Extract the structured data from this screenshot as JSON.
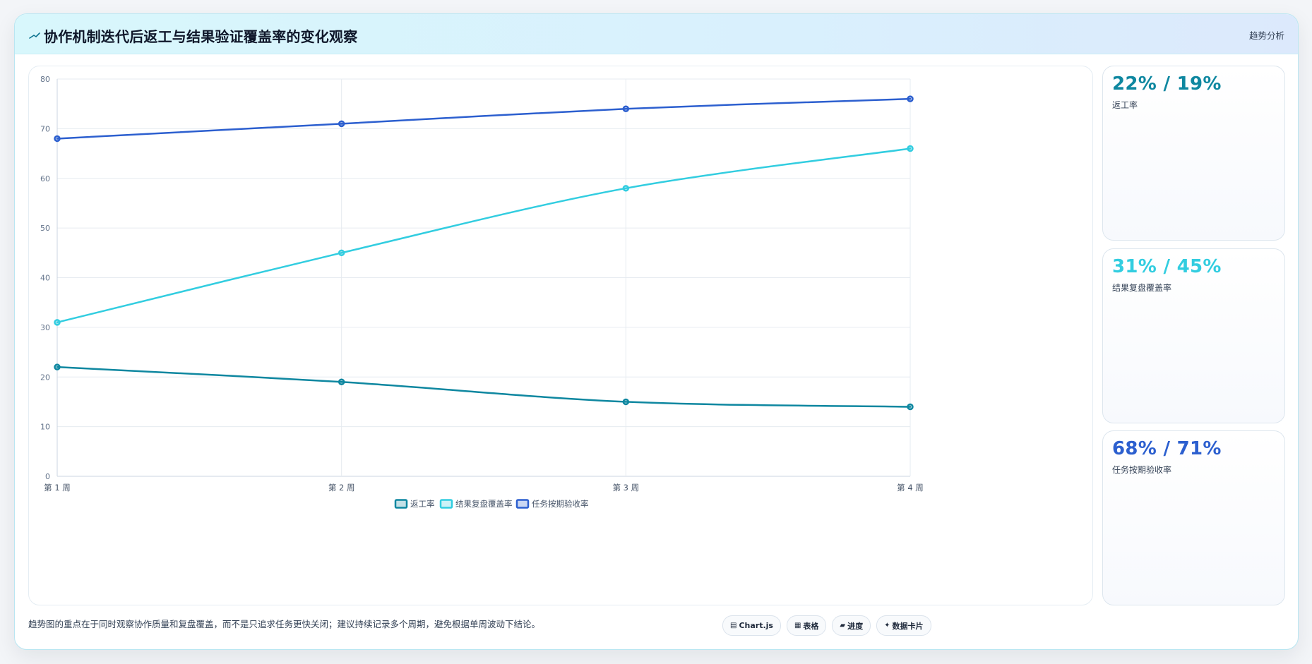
{
  "header": {
    "title": "协作机制迭代后返工与结果验证覆盖率的变化观察",
    "title_icon": "trend-line-icon",
    "tag": "趋势分析"
  },
  "chart_data": {
    "type": "line",
    "categories": [
      "第 1 周",
      "第 2 周",
      "第 3 周",
      "第 4 周"
    ],
    "series": [
      {
        "name": "返工率",
        "values": [
          22,
          19,
          15,
          14
        ],
        "color": "#0e87a0"
      },
      {
        "name": "结果复盘覆盖率",
        "values": [
          31,
          45,
          58,
          66
        ],
        "color": "#32cde0"
      },
      {
        "name": "任务按期验收率",
        "values": [
          68,
          71,
          74,
          76
        ],
        "color": "#2c5fcf"
      }
    ],
    "ylim": [
      0,
      80
    ],
    "yticks": [
      0,
      10,
      20,
      30,
      40,
      50,
      60,
      70,
      80
    ],
    "grid": true,
    "legend": "bottom-center",
    "title": "",
    "xlabel": "",
    "ylabel": ""
  },
  "kpis": [
    {
      "value": "22% / 19%",
      "label": "返工率",
      "color": "#0e87a0"
    },
    {
      "value": "31% / 45%",
      "label": "结果复盘覆盖率",
      "color": "#32cde0"
    },
    {
      "value": "68% / 71%",
      "label": "任务按期验收率",
      "color": "#2c5fcf"
    }
  ],
  "footer": {
    "note": "趋势图的重点在于同时观察协作质量和复盘覆盖，而不是只追求任务更快关闭；建议持续记录多个周期，避免根据单周波动下结论。",
    "tags": [
      {
        "label": "Chart.js",
        "icon": "▤"
      },
      {
        "label": "表格",
        "icon": "▦"
      },
      {
        "label": "进度",
        "icon": "▰"
      },
      {
        "label": "数据卡片",
        "icon": "✦"
      }
    ]
  }
}
